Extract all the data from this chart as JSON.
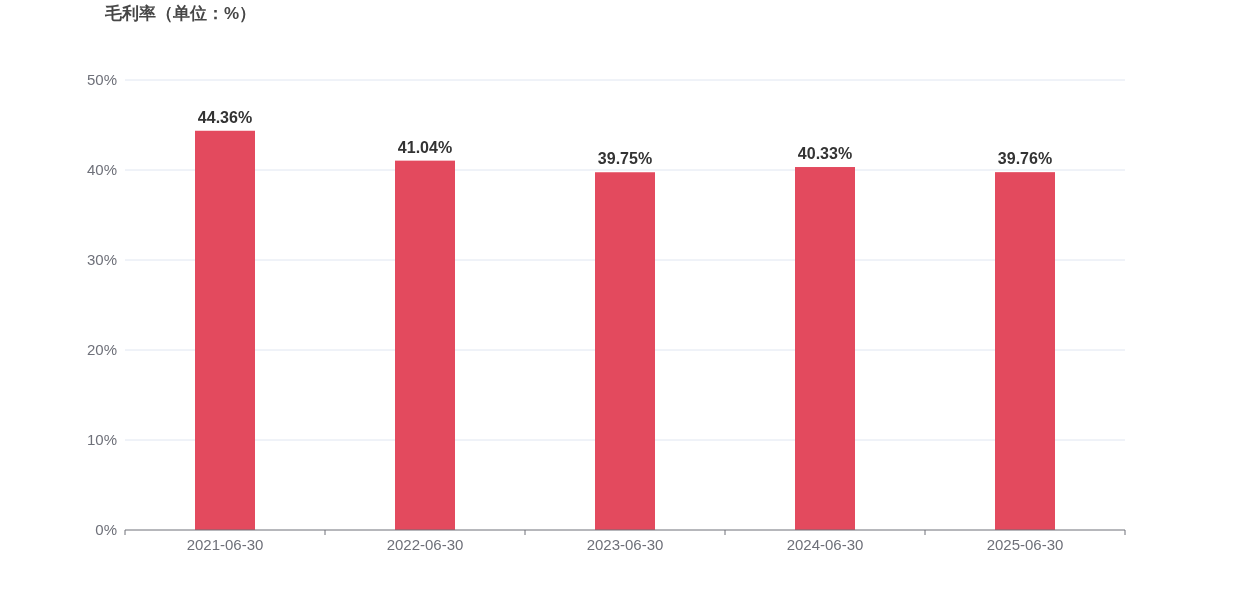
{
  "chart_data": {
    "type": "bar",
    "title": "毛利率（单位：%）",
    "categories": [
      "2021-06-30",
      "2022-06-30",
      "2023-06-30",
      "2024-06-30",
      "2025-06-30"
    ],
    "values": [
      44.36,
      41.04,
      39.75,
      40.33,
      39.76
    ],
    "value_labels": [
      "44.36%",
      "41.04%",
      "39.75%",
      "40.33%",
      "39.76%"
    ],
    "color": "#e34a5e",
    "ylim": [
      0,
      50
    ],
    "yticks": [
      {
        "value": 0,
        "label": "0%"
      },
      {
        "value": 10,
        "label": "10%"
      },
      {
        "value": 20,
        "label": "20%"
      },
      {
        "value": 30,
        "label": "30%"
      },
      {
        "value": 40,
        "label": "40%"
      },
      {
        "value": 50,
        "label": "50%"
      }
    ],
    "grid": "y"
  }
}
